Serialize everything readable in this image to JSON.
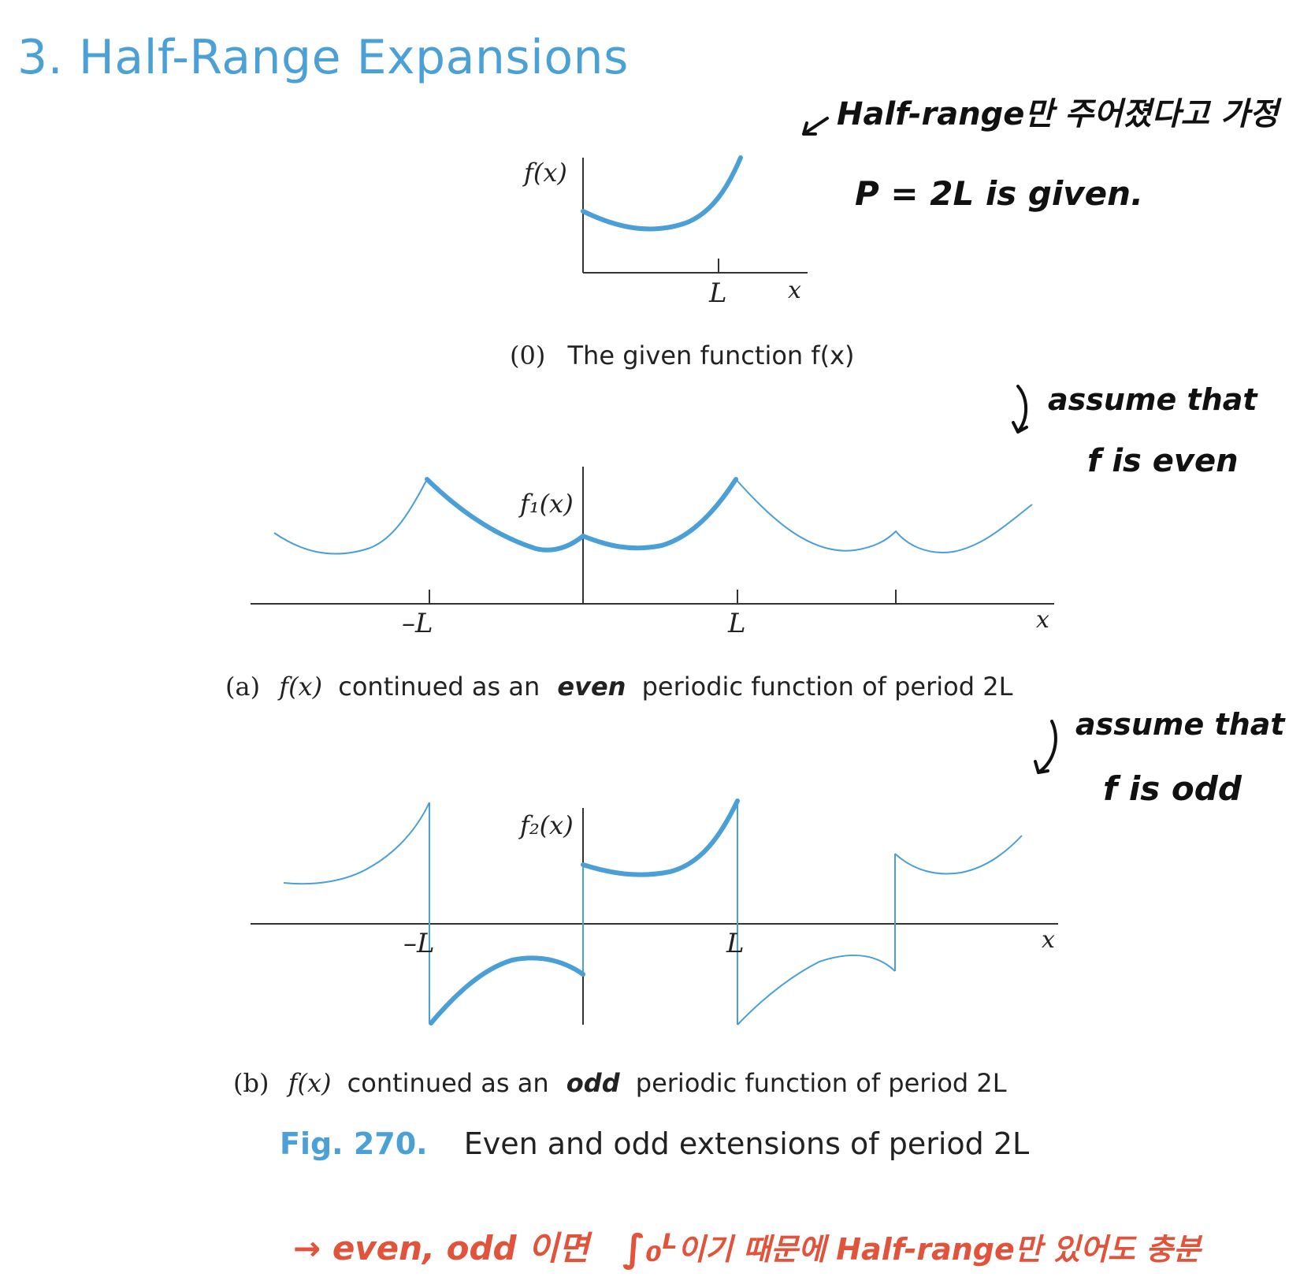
{
  "title": "3. Half-Range Expansions",
  "panel0": {
    "ylabel": "f(x)",
    "tick_L": "L",
    "xlabel": "x",
    "caption_tag": "(0)",
    "caption_text": "The given function f(x)"
  },
  "panelA": {
    "ylabel": "f₁(x)",
    "tick_minus_L": "–L",
    "tick_L": "L",
    "xlabel": "x",
    "caption_tag": "(a)",
    "caption_fx": "f(x)",
    "caption_before": "continued as an",
    "caption_emph": "even",
    "caption_after": "periodic function of period 2L"
  },
  "panelB": {
    "ylabel": "f₂(x)",
    "tick_minus_L": "–L",
    "tick_L": "L",
    "xlabel": "x",
    "caption_tag": "(b)",
    "caption_fx": "f(x)",
    "caption_before": "continued as an",
    "caption_emph": "odd",
    "caption_after": "periodic function of period 2L"
  },
  "figure_caption": {
    "label": "Fig. 270.",
    "text": "Even and odd extensions of period 2L"
  },
  "notes": {
    "note1_line1": "Half-range만 주어졌다고 가정",
    "note1_line2": "P = 2L is given.",
    "note2_line1": "assume that",
    "note2_line2": "f is even",
    "note3_line1": "assume that",
    "note3_line2": "f is odd",
    "note4_a": "→ even, odd 이면",
    "note4_integral": "∫₀ᴸ",
    "note4_b": "이기 때문에 Half-range만 있어도 충분"
  },
  "colors": {
    "title": "#4ba0d6",
    "curve": "#4a9fd6",
    "axis": "#333333",
    "handwriting": "#111111",
    "red_note": "#e2533b"
  }
}
